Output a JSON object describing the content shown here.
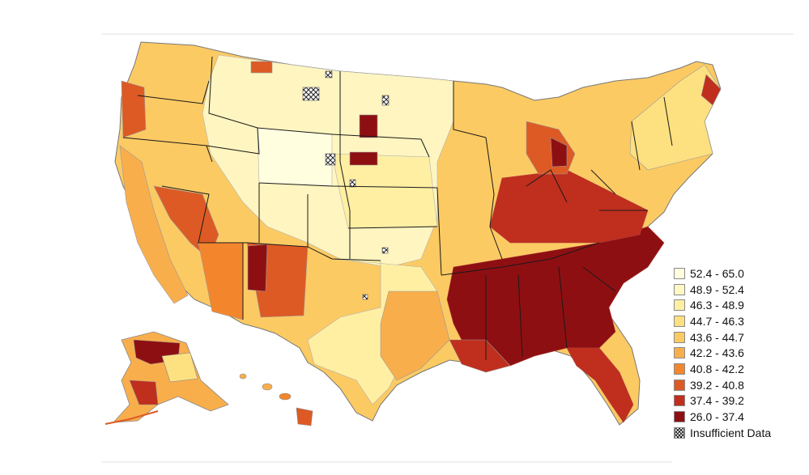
{
  "legend": {
    "bins": [
      {
        "label": "52.4 - 65.0",
        "color": "#ffffe0"
      },
      {
        "label": "48.9 - 52.4",
        "color": "#fff7c4"
      },
      {
        "label": "46.3 - 48.9",
        "color": "#ffefa3"
      },
      {
        "label": "44.7 - 46.3",
        "color": "#fde080"
      },
      {
        "label": "43.6 - 44.7",
        "color": "#fcca63"
      },
      {
        "label": "42.2 - 43.6",
        "color": "#f9ae4c"
      },
      {
        "label": "40.8 - 42.2",
        "color": "#f3862d"
      },
      {
        "label": "39.2 - 40.8",
        "color": "#dd5a25"
      },
      {
        "label": "37.4 - 39.2",
        "color": "#c02e1d"
      },
      {
        "label": "26.0 - 37.4",
        "color": "#8e0f12"
      }
    ],
    "insufficient_label": "Insufficient Data"
  },
  "map": {
    "region": "United States counties",
    "border_color": "#9a9a9a",
    "state_line_color": "#1a1a1a"
  }
}
